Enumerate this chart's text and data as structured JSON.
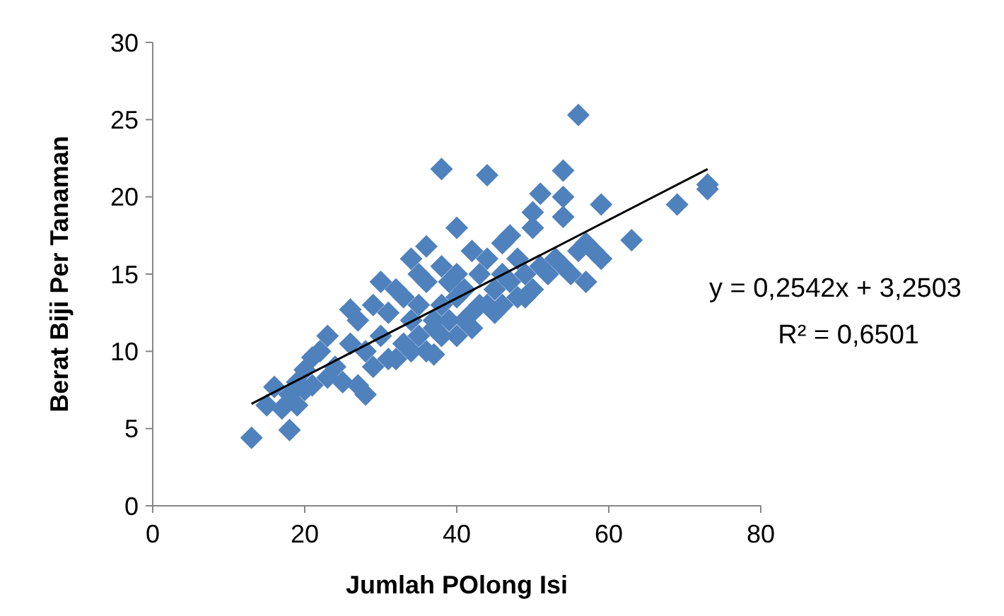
{
  "chart_data": {
    "type": "scatter",
    "xlabel": "Jumlah POlong Isi",
    "ylabel": "Berat Biji Per Tanaman",
    "xlim": [
      0,
      80
    ],
    "ylim": [
      0,
      30
    ],
    "xticks": [
      0,
      20,
      40,
      60,
      80
    ],
    "yticks": [
      0,
      5,
      10,
      15,
      20,
      25,
      30
    ],
    "grid": false,
    "marker": "diamond",
    "annotations": [
      "y = 0,2542x + 3,2503",
      "R² = 0,6501"
    ],
    "series": [
      {
        "color": "#4f81bd",
        "x": [
          13,
          15,
          16,
          17,
          18,
          18,
          19,
          19,
          20,
          20,
          21,
          21,
          22,
          23,
          23,
          24,
          25,
          26,
          26,
          27,
          27,
          28,
          28,
          29,
          29,
          30,
          30,
          31,
          31,
          32,
          32,
          33,
          33,
          34,
          34,
          34,
          35,
          35,
          35,
          36,
          36,
          36,
          37,
          37,
          37,
          38,
          38,
          38,
          38,
          39,
          39,
          40,
          40,
          40,
          40,
          41,
          41,
          42,
          42,
          42,
          43,
          43,
          44,
          44,
          44,
          45,
          45,
          46,
          46,
          46,
          47,
          47,
          48,
          48,
          49,
          49,
          50,
          50,
          50,
          51,
          51,
          52,
          53,
          54,
          54,
          54,
          54,
          55,
          56,
          56,
          57,
          57,
          58,
          59,
          59,
          63,
          69,
          73,
          73
        ],
        "values": [
          4.4,
          6.5,
          7.7,
          6.3,
          4.9,
          7.2,
          6.5,
          8,
          8.8,
          7.5,
          9.6,
          7.8,
          10,
          8.3,
          11,
          9,
          8,
          12.7,
          10.5,
          7.8,
          12,
          7.2,
          10,
          13,
          9,
          14.5,
          11,
          9.5,
          12.5,
          14,
          9.5,
          13.5,
          10.5,
          16,
          12,
          10,
          15,
          11,
          13,
          16.8,
          14.5,
          10,
          12,
          9.8,
          11.5,
          21.8,
          15.5,
          13,
          11,
          14.5,
          12,
          18,
          15,
          11,
          13.5,
          14,
          12,
          16.5,
          12.5,
          11.5,
          15,
          13,
          21.4,
          16,
          13,
          14,
          12.5,
          17,
          15,
          13,
          17.5,
          14.5,
          16,
          13.5,
          13.5,
          15,
          19,
          18,
          14,
          20.2,
          15.5,
          15,
          16,
          21.7,
          20,
          18.7,
          15.5,
          15,
          25.3,
          16.5,
          14.5,
          17,
          16.5,
          19.5,
          16,
          17.2,
          19.5,
          20.5,
          20.8
        ]
      },
      {
        "type": "line",
        "color": "#000000",
        "x": [
          13,
          73
        ],
        "values": [
          6.6,
          21.8
        ],
        "marker": "none",
        "line_style": "solid"
      }
    ]
  }
}
